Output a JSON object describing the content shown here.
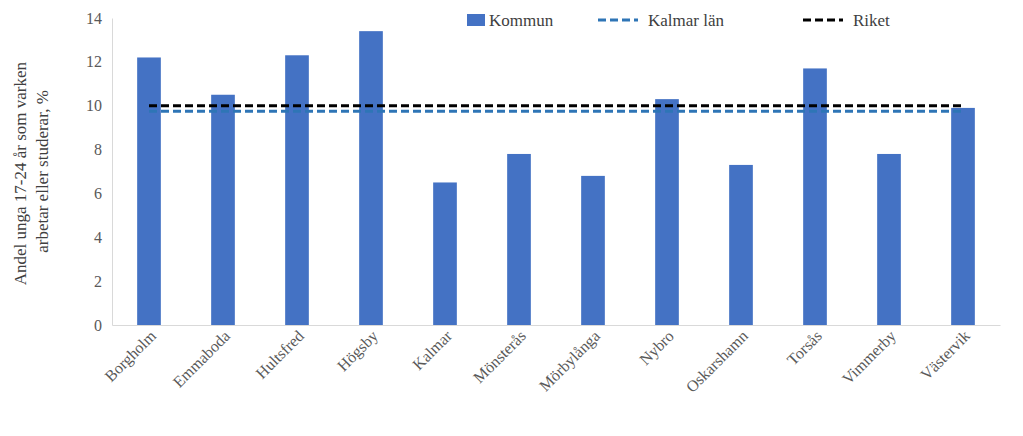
{
  "chart_data": {
    "type": "bar",
    "y_label": "Andel unga 17-24 år som varken arbetar eller studerar, %",
    "categories": [
      "Borgholm",
      "Emmaboda",
      "Hultsfred",
      "Högsby",
      "Kalmar",
      "Mönsterås",
      "Mörbylånga",
      "Nybro",
      "Oskarshamn",
      "Torsås",
      "Vimmerby",
      "Västervik"
    ],
    "series": [
      {
        "name": "Kommun",
        "type": "bar",
        "color": "#4472c4",
        "values": [
          12.2,
          10.5,
          12.3,
          13.4,
          6.5,
          7.8,
          6.8,
          10.3,
          7.3,
          11.7,
          7.8,
          9.9
        ]
      },
      {
        "name": "Kalmar län",
        "type": "line",
        "line_style": "dashed",
        "color": "#2e75b6",
        "values": [
          9.75,
          9.75,
          9.75,
          9.75,
          9.75,
          9.75,
          9.75,
          9.75,
          9.75,
          9.75,
          9.75,
          9.75
        ]
      },
      {
        "name": "Riket",
        "type": "line",
        "line_style": "dashed",
        "color": "#000000",
        "values": [
          10,
          10,
          10,
          10,
          10,
          10,
          10,
          10,
          10,
          10,
          10,
          10
        ]
      }
    ],
    "ylim": [
      0,
      14
    ],
    "yticks": [
      0,
      2,
      4,
      6,
      8,
      10,
      12,
      14
    ],
    "grid": false,
    "legend": "top"
  }
}
